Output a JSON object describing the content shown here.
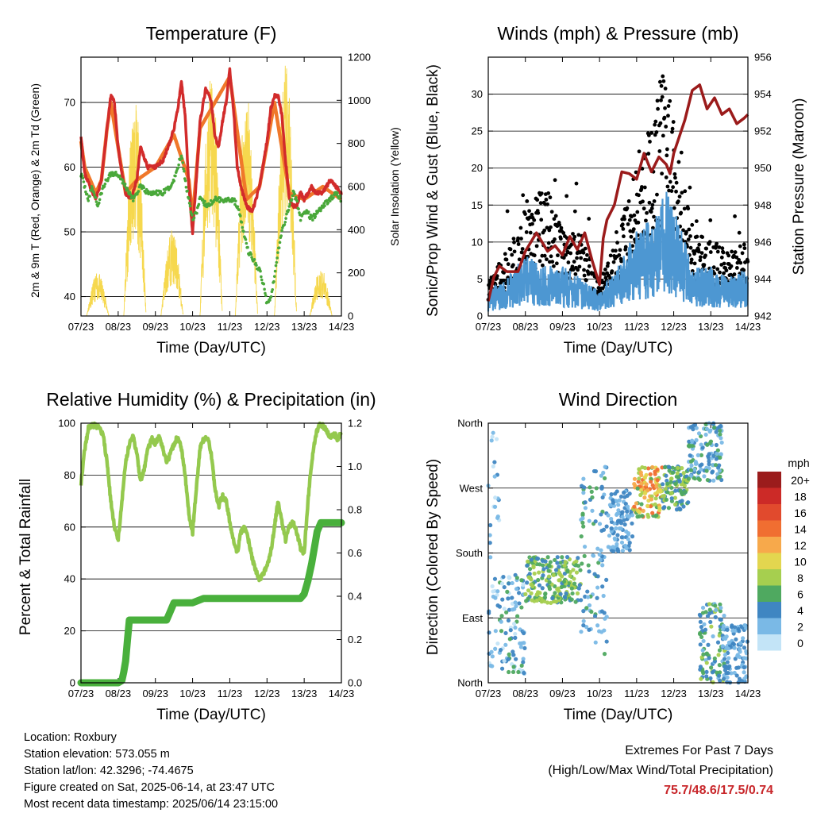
{
  "chart_data": [
    {
      "type": "line",
      "title": "Temperature (F)",
      "xlabel": "Time (Day/UTC)",
      "ylabel": "2m & 9m T (Red, Orange) & 2m Td (Green)",
      "y2label": "Solar Insolation (Yellow)",
      "x_ticks": [
        "07/23",
        "08/23",
        "09/23",
        "10/23",
        "11/23",
        "12/23",
        "13/23",
        "14/23"
      ],
      "xlim": [
        0,
        7
      ],
      "ylim": [
        37,
        77
      ],
      "y_ticks": [
        40,
        50,
        60,
        70
      ],
      "y2lim": [
        0,
        1200
      ],
      "y2_ticks": [
        0,
        200,
        400,
        600,
        800,
        1000,
        1200
      ],
      "grid": true,
      "series": [
        {
          "name": "2m T",
          "color": "#d22b2b",
          "axis": "left",
          "x": [
            0,
            0.1,
            0.25,
            0.4,
            0.55,
            0.7,
            0.8,
            0.9,
            1.0,
            1.1,
            1.2,
            1.35,
            1.5,
            1.6,
            1.8,
            2.0,
            2.2,
            2.4,
            2.5,
            2.6,
            2.7,
            2.8,
            2.9,
            3.0,
            3.1,
            3.2,
            3.35,
            3.45,
            3.5,
            3.6,
            3.7,
            3.8,
            3.9,
            4.0,
            4.1,
            4.2,
            4.3,
            4.45,
            4.6,
            4.8,
            5.0,
            5.1,
            5.2,
            5.3,
            5.4,
            5.5,
            5.6,
            5.7,
            5.8,
            5.9,
            6.0,
            6.1,
            6.2,
            6.3,
            6.5,
            6.7,
            6.85,
            7.0
          ],
          "y": [
            65,
            59,
            57,
            55,
            58,
            66,
            71,
            70,
            63,
            59,
            56,
            55,
            58,
            63,
            60,
            60,
            61,
            64,
            66,
            69,
            73,
            68,
            57,
            50,
            58,
            67,
            72,
            71,
            70,
            65,
            63,
            67,
            70,
            75,
            69,
            60,
            57,
            54,
            53,
            57,
            64,
            69,
            71,
            71,
            68,
            61,
            55,
            54,
            54,
            56,
            55,
            56,
            57,
            56,
            56,
            58,
            57,
            56
          ]
        },
        {
          "name": "9m T",
          "color": "#f0782a",
          "axis": "left",
          "x": [
            0,
            0.1,
            0.25,
            0.4,
            0.55,
            0.7,
            0.8,
            1.0,
            1.2,
            1.5,
            2.0,
            2.5,
            2.9,
            3.0,
            3.2,
            3.5,
            4.0,
            4.45,
            4.8,
            5.2,
            5.6,
            6.0,
            6.5,
            7.0
          ],
          "y": [
            64,
            60,
            58,
            56,
            58,
            66,
            70,
            63,
            56,
            58,
            60,
            65,
            58,
            52,
            66,
            69,
            74,
            55,
            57,
            70,
            56,
            55,
            57,
            55
          ]
        },
        {
          "name": "2m Td",
          "color": "#49a83a",
          "axis": "left",
          "x": [
            0,
            0.1,
            0.2,
            0.3,
            0.45,
            0.6,
            0.8,
            1.0,
            1.2,
            1.4,
            1.6,
            1.8,
            2.0,
            2.2,
            2.4,
            2.5,
            2.6,
            2.7,
            2.8,
            2.9,
            3.0,
            3.1,
            3.2,
            3.4,
            3.6,
            3.8,
            4.0,
            4.1,
            4.2,
            4.3,
            4.4,
            4.5,
            4.6,
            4.7,
            4.8,
            4.9,
            5.0,
            5.1,
            5.2,
            5.3,
            5.4,
            5.5,
            5.6,
            5.7,
            5.8,
            5.9,
            6.0,
            6.1,
            6.2,
            6.35,
            6.5,
            6.7,
            6.85,
            7.0
          ],
          "y": [
            59,
            57,
            55,
            57,
            54,
            57,
            59,
            59,
            57,
            55,
            57,
            56,
            56,
            56,
            57,
            58,
            60,
            62,
            58,
            55,
            52,
            53,
            55,
            54,
            55,
            55,
            55,
            55,
            54,
            52,
            49,
            47,
            46,
            45,
            44,
            42,
            39,
            40,
            43,
            47,
            50,
            52,
            54,
            56,
            55,
            52,
            53,
            53,
            52,
            53,
            54,
            55,
            56,
            55
          ]
        },
        {
          "name": "Solar Insolation",
          "color": "#f6d645",
          "axis": "right",
          "days": [
            {
              "center": 0.45,
              "peak": 200
            },
            {
              "center": 1.45,
              "peak": 1000
            },
            {
              "center": 2.45,
              "peak": 400
            },
            {
              "center": 3.5,
              "peak": 1150
            },
            {
              "center": 4.45,
              "peak": 1050
            },
            {
              "center": 5.5,
              "peak": 1170
            },
            {
              "center": 6.45,
              "peak": 220
            }
          ]
        }
      ]
    },
    {
      "type": "line",
      "title": "Winds (mph) & Pressure (mb)",
      "xlabel": "Time (Day/UTC)",
      "ylabel": "Sonic/Prop Wind & Gust (Blue, Black)",
      "y2label": "Station Pressure (Maroon)",
      "x_ticks": [
        "07/23",
        "08/23",
        "09/23",
        "10/23",
        "11/23",
        "12/23",
        "13/23",
        "14/23"
      ],
      "xlim": [
        0,
        7
      ],
      "ylim": [
        0,
        35
      ],
      "y_ticks": [
        0,
        5,
        10,
        15,
        20,
        25,
        30
      ],
      "y2lim": [
        942,
        956
      ],
      "y2_ticks": [
        942,
        944,
        946,
        948,
        950,
        952,
        954,
        956
      ],
      "grid": true,
      "series": [
        {
          "name": "Wind",
          "color": "#4d97d2",
          "x": [
            0,
            0.5,
            1.0,
            1.5,
            2.0,
            2.5,
            3.0,
            3.5,
            4.0,
            4.5,
            4.8,
            5.0,
            5.5,
            6.0,
            6.5,
            7.0
          ],
          "y": [
            2,
            3,
            5,
            4,
            4,
            3,
            2,
            4,
            7,
            8,
            10,
            9,
            4,
            4,
            3,
            4
          ]
        },
        {
          "name": "Gust",
          "color": "#000000",
          "x": [
            0,
            0.5,
            1.0,
            1.5,
            2.0,
            2.5,
            3.0,
            3.5,
            4.0,
            4.5,
            4.8,
            5.0,
            5.5,
            6.0,
            6.5,
            7.0
          ],
          "y": [
            4,
            6,
            10,
            12,
            8,
            8,
            3,
            8,
            14,
            20,
            24,
            18,
            8,
            7,
            6,
            7
          ]
        },
        {
          "name": "Station Pressure",
          "color": "#9b1b1b",
          "axis": "right",
          "x": [
            0,
            0.15,
            0.3,
            0.5,
            0.8,
            1.0,
            1.3,
            1.6,
            1.8,
            2.0,
            2.2,
            2.4,
            2.6,
            2.8,
            3.0,
            3.1,
            3.2,
            3.4,
            3.6,
            3.8,
            4.0,
            4.2,
            4.4,
            4.6,
            4.8,
            4.9,
            5.0,
            5.3,
            5.5,
            5.7,
            5.9,
            6.1,
            6.3,
            6.5,
            6.7,
            6.9,
            7.0
          ],
          "y": [
            942.8,
            944.1,
            944.7,
            944.4,
            944.4,
            945.5,
            946.5,
            945.5,
            945.8,
            945.3,
            946.3,
            945.6,
            946.5,
            945,
            943.7,
            946.2,
            947.2,
            948,
            949.8,
            949.7,
            949.4,
            950.8,
            949.8,
            950.6,
            950.2,
            949.7,
            950.8,
            952.6,
            954.2,
            954.5,
            953.2,
            953.8,
            952.9,
            953.2,
            952.4,
            952.7,
            952.9
          ]
        }
      ]
    },
    {
      "type": "line",
      "title": "Relative Humidity (%) & Precipitation (in)",
      "xlabel": "Time (Day/UTC)",
      "ylabel": "Percent & Total Rainfall",
      "x_ticks": [
        "07/23",
        "08/23",
        "09/23",
        "10/23",
        "11/23",
        "12/23",
        "13/23",
        "14/23"
      ],
      "xlim": [
        0,
        7
      ],
      "ylim": [
        0,
        100
      ],
      "y_ticks": [
        0,
        20,
        40,
        60,
        80,
        100
      ],
      "y2lim": [
        0,
        1.2
      ],
      "y2_ticks": [
        0.0,
        0.2,
        0.4,
        0.6,
        0.8,
        1.0,
        1.2
      ],
      "grid": true,
      "series": [
        {
          "name": "Relative Humidity",
          "color": "#94c94e",
          "axis": "left",
          "x": [
            0,
            0.1,
            0.2,
            0.3,
            0.4,
            0.5,
            0.6,
            0.7,
            0.8,
            0.9,
            1.0,
            1.1,
            1.2,
            1.3,
            1.4,
            1.5,
            1.6,
            1.7,
            1.8,
            1.9,
            2.0,
            2.1,
            2.2,
            2.3,
            2.4,
            2.5,
            2.6,
            2.7,
            2.8,
            2.9,
            3.0,
            3.1,
            3.2,
            3.3,
            3.4,
            3.5,
            3.6,
            3.7,
            3.8,
            3.9,
            4.0,
            4.1,
            4.2,
            4.3,
            4.4,
            4.5,
            4.6,
            4.7,
            4.8,
            4.9,
            5.0,
            5.1,
            5.2,
            5.3,
            5.4,
            5.5,
            5.6,
            5.7,
            5.8,
            5.9,
            6.0,
            6.1,
            6.2,
            6.3,
            6.4,
            6.5,
            6.6,
            6.7,
            6.8,
            6.9,
            7.0
          ],
          "y": [
            77,
            90,
            98,
            99,
            99,
            98,
            95,
            85,
            70,
            60,
            55,
            70,
            85,
            92,
            95,
            88,
            78,
            82,
            90,
            94,
            92,
            95,
            90,
            85,
            88,
            92,
            95,
            90,
            80,
            65,
            58,
            75,
            90,
            94,
            95,
            88,
            75,
            68,
            72,
            70,
            62,
            55,
            50,
            58,
            60,
            55,
            48,
            43,
            40,
            42,
            45,
            50,
            60,
            70,
            62,
            55,
            60,
            62,
            58,
            52,
            50,
            70,
            85,
            95,
            99,
            99,
            97,
            95,
            96,
            94,
            96
          ]
        },
        {
          "name": "Total Precipitation",
          "color": "#49b03c",
          "axis": "right",
          "x": [
            0,
            1.0,
            1.1,
            1.15,
            1.2,
            1.25,
            1.3,
            1.4,
            1.8,
            1.9,
            2.0,
            2.3,
            2.4,
            2.5,
            2.6,
            3.0,
            3.3,
            3.8,
            4.5,
            5.0,
            5.5,
            5.9,
            6.0,
            6.1,
            6.2,
            6.3,
            6.35,
            6.45,
            7.0
          ],
          "y": [
            0,
            0,
            0.01,
            0.05,
            0.1,
            0.2,
            0.29,
            0.29,
            0.29,
            0.29,
            0.29,
            0.29,
            0.33,
            0.37,
            0.37,
            0.37,
            0.39,
            0.39,
            0.39,
            0.39,
            0.39,
            0.39,
            0.41,
            0.47,
            0.55,
            0.65,
            0.7,
            0.74,
            0.74
          ]
        }
      ]
    },
    {
      "type": "scatter",
      "title": "Wind Direction",
      "xlabel": "Time (Day/UTC)",
      "ylabel": "Direction (Colored By Speed)",
      "x_ticks": [
        "07/23",
        "08/23",
        "09/23",
        "10/23",
        "11/23",
        "12/23",
        "13/23",
        "14/23"
      ],
      "xlim": [
        0,
        7
      ],
      "ylim": [
        0,
        360
      ],
      "y_ticks": [
        "North",
        "East",
        "South",
        "West",
        "North"
      ],
      "grid": true,
      "legend": {
        "title": "mph",
        "placement": "right",
        "labels": [
          "20+",
          "18",
          "16",
          "14",
          "12",
          "10",
          "8",
          "6",
          "4",
          "2",
          "0"
        ],
        "colors": [
          "#9b1c1c",
          "#cc2a27",
          "#e14a2d",
          "#f06e31",
          "#f7a94b",
          "#e3d64f",
          "#a6cf4f",
          "#4fa960",
          "#3f86c2",
          "#7ab9e6",
          "#c3e4f7"
        ]
      },
      "clusters": [
        {
          "x": [
            0.0,
            0.3
          ],
          "dir": [
            0,
            360
          ],
          "speed": [
            0,
            4
          ]
        },
        {
          "x": [
            0.3,
            1.0
          ],
          "dir": [
            10,
            150
          ],
          "speed": [
            0,
            6
          ]
        },
        {
          "x": [
            1.0,
            2.5
          ],
          "dir": [
            110,
            175
          ],
          "speed": [
            4,
            9
          ]
        },
        {
          "x": [
            2.5,
            3.2
          ],
          "dir": [
            40,
            300
          ],
          "speed": [
            1,
            7
          ]
        },
        {
          "x": [
            3.2,
            3.9
          ],
          "dir": [
            180,
            270
          ],
          "speed": [
            1,
            5
          ]
        },
        {
          "x": [
            3.9,
            4.7
          ],
          "dir": [
            230,
            300
          ],
          "speed": [
            5,
            15
          ]
        },
        {
          "x": [
            4.7,
            5.4
          ],
          "dir": [
            240,
            300
          ],
          "speed": [
            3,
            9
          ]
        },
        {
          "x": [
            5.4,
            6.3
          ],
          "dir": [
            280,
            360
          ],
          "speed": [
            1,
            7
          ]
        },
        {
          "x": [
            5.7,
            6.4
          ],
          "dir": [
            0,
            110
          ],
          "speed": [
            2,
            8
          ]
        },
        {
          "x": [
            6.3,
            7.0
          ],
          "dir": [
            0,
            80
          ],
          "speed": [
            1,
            5
          ]
        }
      ]
    }
  ],
  "station": {
    "location": "Location: Roxbury",
    "elevation": "Station elevation: 573.055 m",
    "latlon": "Station lat/lon: 42.3296; -74.4675",
    "created": "Figure created on Sat, 2025-06-14, at 23:47 UTC",
    "recent": "Most recent data timestamp: 2025/06/14 23:15:00"
  },
  "extremes": {
    "title": "Extremes For Past 7 Days",
    "subtitle": "(High/Low/Max Wind/Total Precipitation)",
    "values": "75.7/48.6/17.5/0.74"
  }
}
